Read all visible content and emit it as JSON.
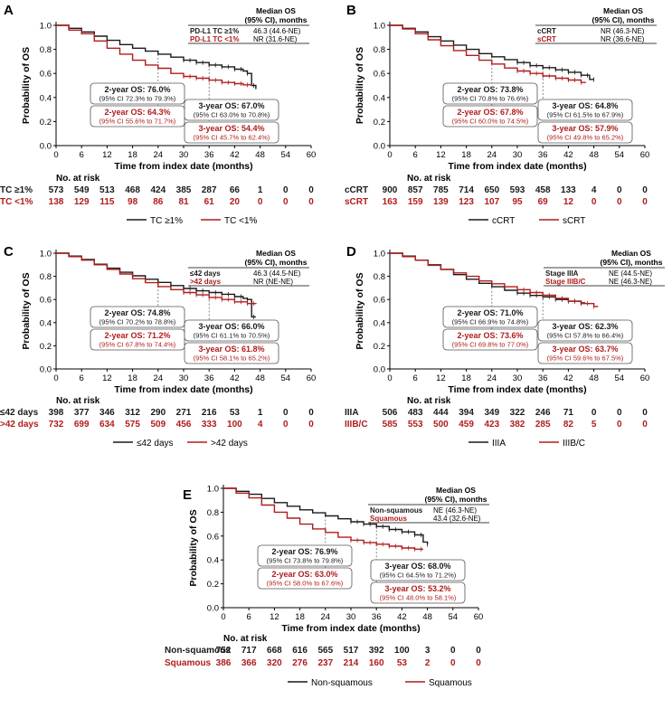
{
  "colors": {
    "group1": "#1a1a1a",
    "group2": "#b01c1c"
  },
  "chart_data": [
    {
      "panel": "A",
      "type": "line",
      "xlabel": "Time from index date (months)",
      "ylabel": "Probability of OS",
      "xlim": [
        0,
        60
      ],
      "ylim": [
        0,
        1.0
      ],
      "xticks": [
        "0",
        "6",
        "12",
        "18",
        "24",
        "30",
        "36",
        "42",
        "48",
        "54",
        "60"
      ],
      "yticks": [
        "0.0",
        "0.2",
        "0.4",
        "0.6",
        "0.8",
        "1.0"
      ],
      "median_header": "Median OS\n(95% CI), months",
      "series": [
        {
          "name": "PD-L1 TC ≥1%",
          "median": "46.3 (44.6-NE)",
          "legend": "TC ≥1%",
          "risk_label": "TC ≥1%",
          "at_risk": [
            "573",
            "549",
            "513",
            "468",
            "424",
            "385",
            "287",
            "66",
            "1",
            "0",
            "0"
          ],
          "x": [
            0,
            3,
            6,
            9,
            12,
            15,
            18,
            21,
            24,
            27,
            30,
            33,
            36,
            39,
            42,
            44,
            45,
            46,
            47
          ],
          "y": [
            1,
            0.975,
            0.945,
            0.91,
            0.875,
            0.84,
            0.81,
            0.785,
            0.76,
            0.735,
            0.71,
            0.69,
            0.67,
            0.655,
            0.635,
            0.62,
            0.6,
            0.5,
            0.47
          ]
        },
        {
          "name": "PD-L1 TC <1%",
          "median": "NR (31.6-NE)",
          "legend": "TC <1%",
          "risk_label": "TC <1%",
          "at_risk": [
            "138",
            "129",
            "115",
            "98",
            "86",
            "81",
            "61",
            "20",
            "0",
            "0",
            "0"
          ],
          "x": [
            0,
            3,
            6,
            9,
            12,
            15,
            18,
            21,
            24,
            27,
            30,
            33,
            36,
            39,
            42,
            44,
            46
          ],
          "y": [
            1,
            0.96,
            0.93,
            0.87,
            0.81,
            0.76,
            0.71,
            0.67,
            0.643,
            0.6,
            0.575,
            0.56,
            0.544,
            0.525,
            0.515,
            0.505,
            0.5
          ]
        }
      ],
      "annotations": [
        {
          "t": "24",
          "main": "2-year OS: 76.0%",
          "ci": "(95% CI 72.3% to 79.3%)",
          "g": 0
        },
        {
          "t": "24",
          "main": "2-year OS: 64.3%",
          "ci": "(95% CI 55.6% to 71.7%)",
          "g": 1
        },
        {
          "t": "36",
          "main": "3-year OS: 67.0%",
          "ci": "(95% CI 63.0% to 70.8%)",
          "g": 0
        },
        {
          "t": "36",
          "main": "3-year OS: 54.4%",
          "ci": "(95% CI 45.7% to 62.4%)",
          "g": 1
        }
      ]
    },
    {
      "panel": "B",
      "type": "line",
      "xlabel": "Time from index date (months)",
      "ylabel": "Probability of OS",
      "xlim": [
        0,
        60
      ],
      "ylim": [
        0,
        1.0
      ],
      "xticks": [
        "0",
        "6",
        "12",
        "18",
        "24",
        "30",
        "36",
        "42",
        "48",
        "54",
        "60"
      ],
      "yticks": [
        "0.0",
        "0.2",
        "0.4",
        "0.6",
        "0.8",
        "1.0"
      ],
      "median_header": "Median OS\n(95% CI), months",
      "series": [
        {
          "name": "cCRT",
          "median": "NR (46.3-NE)",
          "legend": "cCRT",
          "risk_label": "cCRT",
          "at_risk": [
            "900",
            "857",
            "785",
            "714",
            "650",
            "593",
            "458",
            "133",
            "4",
            "0",
            "0"
          ],
          "x": [
            0,
            3,
            6,
            9,
            12,
            15,
            18,
            21,
            24,
            27,
            30,
            33,
            36,
            39,
            42,
            45,
            47,
            48
          ],
          "y": [
            1,
            0.975,
            0.945,
            0.905,
            0.87,
            0.835,
            0.8,
            0.765,
            0.738,
            0.715,
            0.69,
            0.665,
            0.648,
            0.63,
            0.61,
            0.585,
            0.55,
            0.55
          ]
        },
        {
          "name": "sCRT",
          "median": "NR (36.6-NE)",
          "legend": "sCRT",
          "risk_label": "sCRT",
          "at_risk": [
            "163",
            "159",
            "139",
            "123",
            "107",
            "95",
            "69",
            "12",
            "0",
            "0",
            "0"
          ],
          "x": [
            0,
            3,
            6,
            9,
            12,
            15,
            18,
            21,
            24,
            27,
            30,
            33,
            36,
            39,
            42,
            45,
            46
          ],
          "y": [
            1,
            0.97,
            0.93,
            0.88,
            0.83,
            0.79,
            0.75,
            0.71,
            0.678,
            0.645,
            0.62,
            0.6,
            0.579,
            0.56,
            0.545,
            0.525,
            0.52
          ]
        }
      ],
      "annotations": [
        {
          "t": "24",
          "main": "2-year OS: 73.8%",
          "ci": "(95% CI 70.8% to 76.6%)",
          "g": 0
        },
        {
          "t": "24",
          "main": "2-year OS: 67.8%",
          "ci": "(95% CI 60.0% to 74.5%)",
          "g": 1
        },
        {
          "t": "36",
          "main": "3-year OS: 64.8%",
          "ci": "(95% CI 61.5% to 67.9%)",
          "g": 0
        },
        {
          "t": "36",
          "main": "3-year OS: 57.9%",
          "ci": "(95% CI 49.8% to 65.2%)",
          "g": 1
        }
      ]
    },
    {
      "panel": "C",
      "type": "line",
      "xlabel": "Time from index date (months)",
      "ylabel": "Probability of OS",
      "xlim": [
        0,
        60
      ],
      "ylim": [
        0,
        1.0
      ],
      "xticks": [
        "0",
        "6",
        "12",
        "18",
        "24",
        "30",
        "36",
        "42",
        "48",
        "54",
        "60"
      ],
      "yticks": [
        "0.0",
        "0.2",
        "0.4",
        "0.6",
        "0.8",
        "1.0"
      ],
      "median_header": "Median OS\n(95% CI), months",
      "series": [
        {
          "name": "≤42 days",
          "median": "46.3 (44.5-NE)",
          "legend": "≤42 days",
          "risk_label": "≤42 days",
          "at_risk": [
            "398",
            "377",
            "346",
            "312",
            "290",
            "271",
            "216",
            "53",
            "1",
            "0",
            "0"
          ],
          "x": [
            0,
            3,
            6,
            9,
            12,
            15,
            18,
            21,
            24,
            27,
            30,
            33,
            36,
            39,
            42,
            44,
            45,
            46,
            47
          ],
          "y": [
            1,
            0.975,
            0.945,
            0.905,
            0.87,
            0.835,
            0.805,
            0.775,
            0.748,
            0.72,
            0.695,
            0.675,
            0.66,
            0.645,
            0.625,
            0.61,
            0.6,
            0.45,
            0.45
          ]
        },
        {
          "name": ">42 days",
          "median": "NR (NE-NE)",
          "legend": ">42 days",
          "risk_label": ">42 days",
          "at_risk": [
            "732",
            "699",
            "634",
            "575",
            "509",
            "456",
            "333",
            "100",
            "4",
            "0",
            "0"
          ],
          "x": [
            0,
            3,
            6,
            9,
            12,
            15,
            18,
            21,
            24,
            27,
            30,
            33,
            36,
            39,
            42,
            45,
            47
          ],
          "y": [
            1,
            0.97,
            0.94,
            0.9,
            0.86,
            0.82,
            0.78,
            0.745,
            0.712,
            0.685,
            0.66,
            0.64,
            0.618,
            0.6,
            0.58,
            0.565,
            0.56
          ]
        }
      ],
      "annotations": [
        {
          "t": "24",
          "main": "2-year OS: 74.8%",
          "ci": "(95% CI 70.2% to 78.8%)",
          "g": 0
        },
        {
          "t": "24",
          "main": "2-year OS: 71.2%",
          "ci": "(95% CI 67.8% to 74.4%)",
          "g": 1
        },
        {
          "t": "36",
          "main": "3-year OS: 66.0%",
          "ci": "(95% CI 61.1% to 70.5%)",
          "g": 0
        },
        {
          "t": "36",
          "main": "3-year OS: 61.8%",
          "ci": "(95% CI 58.1% to 65.2%)",
          "g": 1
        }
      ]
    },
    {
      "panel": "D",
      "type": "line",
      "xlabel": "Time from index date (months)",
      "ylabel": "Probability of OS",
      "xlim": [
        0,
        60
      ],
      "ylim": [
        0,
        1.0
      ],
      "xticks": [
        "0",
        "6",
        "12",
        "18",
        "24",
        "30",
        "36",
        "42",
        "48",
        "54",
        "60"
      ],
      "yticks": [
        "0.0",
        "0.2",
        "0.4",
        "0.6",
        "0.8",
        "1.0"
      ],
      "median_header": "Median OS\n(95% CI), months",
      "series": [
        {
          "name": "Stage IIIA",
          "median": "NE (44.5-NE)",
          "legend": "IIIA",
          "risk_label": "IIIA",
          "at_risk": [
            "506",
            "483",
            "444",
            "394",
            "349",
            "322",
            "246",
            "71",
            "0",
            "0",
            "0"
          ],
          "x": [
            0,
            3,
            6,
            9,
            12,
            15,
            18,
            21,
            24,
            27,
            30,
            33,
            36,
            39,
            42,
            45,
            46
          ],
          "y": [
            1,
            0.975,
            0.94,
            0.9,
            0.86,
            0.815,
            0.775,
            0.74,
            0.71,
            0.68,
            0.655,
            0.635,
            0.623,
            0.6,
            0.585,
            0.57,
            0.57
          ]
        },
        {
          "name": "Stage IIIB/C",
          "median": "NE (46.3-NE)",
          "legend": "IIIB/C",
          "risk_label": "IIIB/C",
          "at_risk": [
            "585",
            "553",
            "500",
            "459",
            "423",
            "382",
            "285",
            "82",
            "5",
            "0",
            "0"
          ],
          "x": [
            0,
            3,
            6,
            9,
            12,
            15,
            18,
            21,
            24,
            27,
            30,
            33,
            36,
            39,
            42,
            45,
            48,
            49
          ],
          "y": [
            1,
            0.97,
            0.94,
            0.895,
            0.86,
            0.83,
            0.8,
            0.76,
            0.736,
            0.71,
            0.685,
            0.66,
            0.637,
            0.61,
            0.585,
            0.565,
            0.54,
            0.54
          ]
        }
      ],
      "annotations": [
        {
          "t": "24",
          "main": "2-year OS: 71.0%",
          "ci": "(95% CI 66.9% to 74.8%)",
          "g": 0
        },
        {
          "t": "24",
          "main": "2-year OS: 73.6%",
          "ci": "(95% CI 69.8% to 77.0%)",
          "g": 1
        },
        {
          "t": "36",
          "main": "3-year OS: 62.3%",
          "ci": "(95% CI 57.8% to 66.4%)",
          "g": 0
        },
        {
          "t": "36",
          "main": "3-year OS: 63.7%",
          "ci": "(95% CI 59.6% to 67.5%)",
          "g": 1
        }
      ]
    },
    {
      "panel": "E",
      "type": "line",
      "xlabel": "Time from index date (months)",
      "ylabel": "Probability of OS",
      "xlim": [
        0,
        60
      ],
      "ylim": [
        0,
        1.0
      ],
      "xticks": [
        "0",
        "6",
        "12",
        "18",
        "24",
        "30",
        "36",
        "42",
        "48",
        "54",
        "60"
      ],
      "yticks": [
        "0.0",
        "0.2",
        "0.4",
        "0.6",
        "0.8",
        "1.0"
      ],
      "median_header": "Median OS\n(95% CI), months",
      "series": [
        {
          "name": "Non-squamous",
          "median": "NE (46.3-NE)",
          "legend": "Non-squamous",
          "risk_label": "Non-squamous",
          "at_risk": [
            "752",
            "717",
            "668",
            "616",
            "565",
            "517",
            "392",
            "100",
            "3",
            "0",
            "0"
          ],
          "x": [
            0,
            3,
            6,
            9,
            12,
            15,
            18,
            21,
            24,
            27,
            30,
            33,
            36,
            39,
            42,
            45,
            47,
            48
          ],
          "y": [
            1,
            0.975,
            0.95,
            0.915,
            0.88,
            0.85,
            0.82,
            0.795,
            0.769,
            0.745,
            0.72,
            0.7,
            0.68,
            0.655,
            0.635,
            0.61,
            0.55,
            0.53
          ]
        },
        {
          "name": "Squamous",
          "median": "43.4 (32.6-NE)",
          "legend": "Squamous",
          "risk_label": "Squamous",
          "at_risk": [
            "386",
            "366",
            "320",
            "276",
            "237",
            "214",
            "160",
            "53",
            "2",
            "0",
            "0"
          ],
          "x": [
            0,
            3,
            6,
            9,
            12,
            15,
            18,
            21,
            24,
            27,
            30,
            33,
            36,
            39,
            42,
            45,
            47
          ],
          "y": [
            1,
            0.96,
            0.92,
            0.86,
            0.8,
            0.75,
            0.7,
            0.66,
            0.63,
            0.59,
            0.565,
            0.545,
            0.532,
            0.515,
            0.5,
            0.49,
            0.49
          ]
        }
      ],
      "annotations": [
        {
          "t": "24",
          "main": "2-year OS: 76.9%",
          "ci": "(95% CI 73.8% to 79.8%)",
          "g": 0
        },
        {
          "t": "24",
          "main": "2-year OS: 63.0%",
          "ci": "(95% CI 58.0% to 67.6%)",
          "g": 1
        },
        {
          "t": "36",
          "main": "3-year OS: 68.0%",
          "ci": "(95% CI 64.5% to 71.2%)",
          "g": 0
        },
        {
          "t": "36",
          "main": "3-year OS: 53.2%",
          "ci": "(95% CI 48.0% to 58.1%)",
          "g": 1
        }
      ]
    }
  ],
  "risk_table_title": "No. at risk"
}
